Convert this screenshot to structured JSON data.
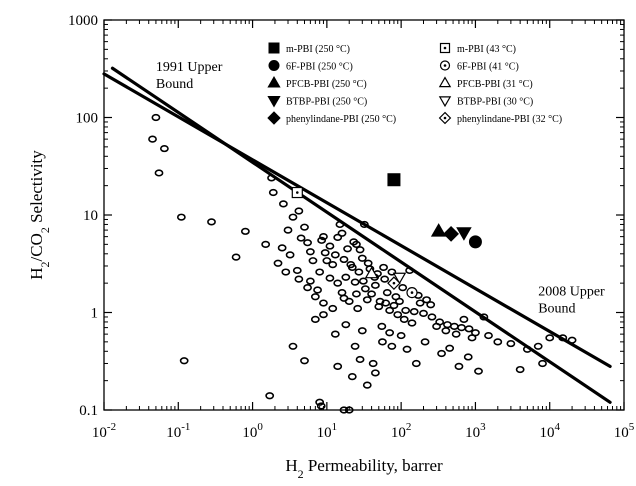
{
  "chart_data": {
    "type": "scatter",
    "x_scale": "log",
    "y_scale": "log",
    "xlim": [
      0.01,
      100000
    ],
    "ylim": [
      0.1,
      1000
    ],
    "x_ticks": [
      {
        "value": 0.01,
        "base": "10",
        "exp": "-2"
      },
      {
        "value": 0.1,
        "base": "10",
        "exp": "-1"
      },
      {
        "value": 1,
        "base": "10",
        "exp": "0"
      },
      {
        "value": 10,
        "base": "10",
        "exp": "1"
      },
      {
        "value": 100,
        "base": "10",
        "exp": "2"
      },
      {
        "value": 1000,
        "base": "10",
        "exp": "3"
      },
      {
        "value": 10000,
        "base": "10",
        "exp": "4"
      },
      {
        "value": 100000,
        "base": "10",
        "exp": "5"
      }
    ],
    "y_ticks": [
      {
        "value": 0.1,
        "label": "0.1"
      },
      {
        "value": 1,
        "label": "1"
      },
      {
        "value": 10,
        "label": "10"
      },
      {
        "value": 100,
        "label": "100"
      },
      {
        "value": 1000,
        "label": "1000"
      }
    ],
    "xlabel": {
      "pre": "H",
      "sub": "2",
      "post": " Permeability, barrer"
    },
    "ylabel": {
      "pre": "H",
      "sub1": "2",
      "mid": "/CO",
      "sub2": "2",
      "post": " Selectivity"
    },
    "annotations": [
      {
        "lines": [
          "1991 Upper",
          "Bound"
        ],
        "x": 0.05,
        "y": 300
      },
      {
        "lines": [
          "2008 Upper",
          "Bound"
        ],
        "x": 7000,
        "y": 1.5
      }
    ],
    "upper_bounds": [
      {
        "label": "1991 Upper Bound",
        "points": [
          [
            0.013,
            320
          ],
          [
            65000,
            0.12
          ]
        ]
      },
      {
        "label": "2008 Upper Bound",
        "points": [
          [
            0.01,
            280
          ],
          [
            65000,
            0.28
          ]
        ]
      }
    ],
    "series": [
      {
        "name": "m-PBI (250 °C)",
        "marker": "filled-square",
        "points": [
          [
            80,
            23
          ]
        ]
      },
      {
        "name": "6F-PBI (250 °C)",
        "marker": "filled-circle",
        "points": [
          [
            1000,
            5.3
          ]
        ]
      },
      {
        "name": "PFCB-PBI (250 °C)",
        "marker": "filled-triangle-up",
        "points": [
          [
            320,
            6.8
          ]
        ]
      },
      {
        "name": "BTBP-PBI (250 °C)",
        "marker": "filled-triangle-down",
        "points": [
          [
            700,
            6.6
          ]
        ]
      },
      {
        "name": "phenylindane-PBI (250 °C)",
        "marker": "filled-diamond",
        "points": [
          [
            470,
            6.4
          ]
        ]
      },
      {
        "name": "m-PBI (43 °C)",
        "marker": "open-square-dot",
        "points": [
          [
            4,
            17
          ]
        ]
      },
      {
        "name": "6F-PBI (41 °C)",
        "marker": "open-circle-dot",
        "points": [
          [
            140,
            1.6
          ]
        ]
      },
      {
        "name": "PFCB-PBI (31 °C)",
        "marker": "open-triangle-up",
        "points": [
          [
            40,
            2.5
          ]
        ]
      },
      {
        "name": "BTBP-PBI (30 °C)",
        "marker": "open-triangle-down",
        "points": [
          [
            95,
            2.3
          ]
        ]
      },
      {
        "name": "phenylindane-PBI (32 °C)",
        "marker": "open-diamond-dot",
        "points": [
          [
            80,
            2.0
          ]
        ]
      }
    ],
    "literature_points": [
      [
        0.05,
        100
      ],
      [
        0.045,
        60
      ],
      [
        0.065,
        48
      ],
      [
        0.055,
        27
      ],
      [
        0.11,
        9.5
      ],
      [
        0.28,
        8.5
      ],
      [
        0.12,
        0.32
      ],
      [
        0.6,
        3.7
      ],
      [
        0.8,
        6.8
      ],
      [
        1.5,
        5
      ],
      [
        1.8,
        24
      ],
      [
        1.9,
        17
      ],
      [
        2.6,
        13
      ],
      [
        3.5,
        9.5
      ],
      [
        4.2,
        11
      ],
      [
        1.7,
        0.14
      ],
      [
        8.4,
        0.11
      ],
      [
        8,
        0.12
      ],
      [
        17,
        0.1
      ],
      [
        20,
        0.1
      ],
      [
        9,
        6
      ],
      [
        5,
        7.5
      ],
      [
        25,
        5
      ],
      [
        15,
        8
      ],
      [
        32,
        8
      ],
      [
        6,
        4.2
      ],
      [
        12,
        3.1
      ],
      [
        18,
        2.3
      ],
      [
        22,
        2.9
      ],
      [
        30,
        3.6
      ],
      [
        45,
        1.9
      ],
      [
        60,
        2.2
      ],
      [
        8,
        2.6
      ],
      [
        10,
        3.4
      ],
      [
        14,
        2
      ],
      [
        16,
        1.6
      ],
      [
        20,
        1.3
      ],
      [
        26,
        1.1
      ],
      [
        35,
        1.35
      ],
      [
        50,
        1.15
      ],
      [
        70,
        1.05
      ],
      [
        90,
        0.95
      ],
      [
        110,
        0.85
      ],
      [
        140,
        0.78
      ],
      [
        180,
        1.25
      ],
      [
        250,
        1.2
      ],
      [
        300,
        0.72
      ],
      [
        400,
        0.65
      ],
      [
        550,
        0.6
      ],
      [
        700,
        0.85
      ],
      [
        900,
        0.55
      ],
      [
        1300,
        0.9
      ],
      [
        2000,
        0.5
      ],
      [
        3000,
        0.48
      ],
      [
        5000,
        0.42
      ],
      [
        7000,
        0.45
      ],
      [
        10000,
        0.55
      ],
      [
        15000,
        0.55
      ],
      [
        20000,
        0.52
      ],
      [
        4000,
        0.26
      ],
      [
        8000,
        0.3
      ],
      [
        3.5,
        0.45
      ],
      [
        5,
        0.32
      ],
      [
        7,
        0.85
      ],
      [
        9,
        1.25
      ],
      [
        13,
        0.6
      ],
      [
        24,
        0.45
      ],
      [
        28,
        0.33
      ],
      [
        42,
        0.3
      ],
      [
        56,
        0.5
      ],
      [
        75,
        0.45
      ],
      [
        120,
        0.42
      ],
      [
        160,
        0.3
      ],
      [
        210,
        0.5
      ],
      [
        350,
        0.38
      ],
      [
        450,
        0.43
      ],
      [
        600,
        0.28
      ],
      [
        800,
        0.35
      ],
      [
        1100,
        0.25
      ],
      [
        4,
        2.7
      ],
      [
        6,
        2.1
      ],
      [
        7.5,
        1.7
      ],
      [
        9.5,
        4.1
      ],
      [
        11,
        4.8
      ],
      [
        13,
        3.9
      ],
      [
        17,
        3.5
      ],
      [
        19,
        4.5
      ],
      [
        21,
        3.1
      ],
      [
        27,
        2.6
      ],
      [
        31,
        2.1
      ],
      [
        38,
        2.8
      ],
      [
        48,
        2.5
      ],
      [
        65,
        1.6
      ],
      [
        85,
        1.45
      ],
      [
        105,
        1.8
      ],
      [
        130,
        2.7
      ],
      [
        170,
        1.5
      ],
      [
        220,
        1.35
      ],
      [
        2.2,
        3.2
      ],
      [
        2.8,
        2.6
      ],
      [
        3.2,
        3.9
      ],
      [
        5.5,
        5.2
      ],
      [
        6.5,
        3.4
      ],
      [
        8.5,
        5.5
      ],
      [
        11,
        2.25
      ],
      [
        14,
        5.9
      ],
      [
        24,
        2.05
      ],
      [
        33,
        1.75
      ],
      [
        40,
        1.55
      ],
      [
        52,
        1.3
      ],
      [
        62,
        1.25
      ],
      [
        80,
        1.18
      ],
      [
        95,
        1.3
      ],
      [
        115,
        1.05
      ],
      [
        150,
        1.02
      ],
      [
        200,
        0.98
      ],
      [
        260,
        0.9
      ],
      [
        330,
        0.8
      ],
      [
        420,
        0.75
      ],
      [
        520,
        0.72
      ],
      [
        650,
        0.7
      ],
      [
        820,
        0.68
      ],
      [
        1000,
        0.62
      ],
      [
        1500,
        0.58
      ],
      [
        18,
        0.75
      ],
      [
        30,
        0.65
      ],
      [
        55,
        0.72
      ],
      [
        70,
        0.62
      ],
      [
        100,
        0.58
      ],
      [
        14,
        0.28
      ],
      [
        22,
        0.22
      ],
      [
        35,
        0.18
      ],
      [
        45,
        0.24
      ],
      [
        3,
        7
      ],
      [
        4.5,
        5.8
      ],
      [
        2.5,
        4.6
      ],
      [
        16,
        6.5
      ],
      [
        23,
        5.3
      ],
      [
        28,
        4.4
      ],
      [
        36,
        3.2
      ],
      [
        44,
        2.3
      ],
      [
        58,
        2.9
      ],
      [
        75,
        2.6
      ],
      [
        9,
        0.95
      ],
      [
        12,
        1.1
      ],
      [
        17,
        1.4
      ],
      [
        25,
        1.55
      ],
      [
        7,
        1.45
      ],
      [
        5.5,
        1.8
      ],
      [
        4.2,
        2.2
      ]
    ],
    "colors": {
      "ink": "#000000",
      "background": "#ffffff"
    }
  }
}
